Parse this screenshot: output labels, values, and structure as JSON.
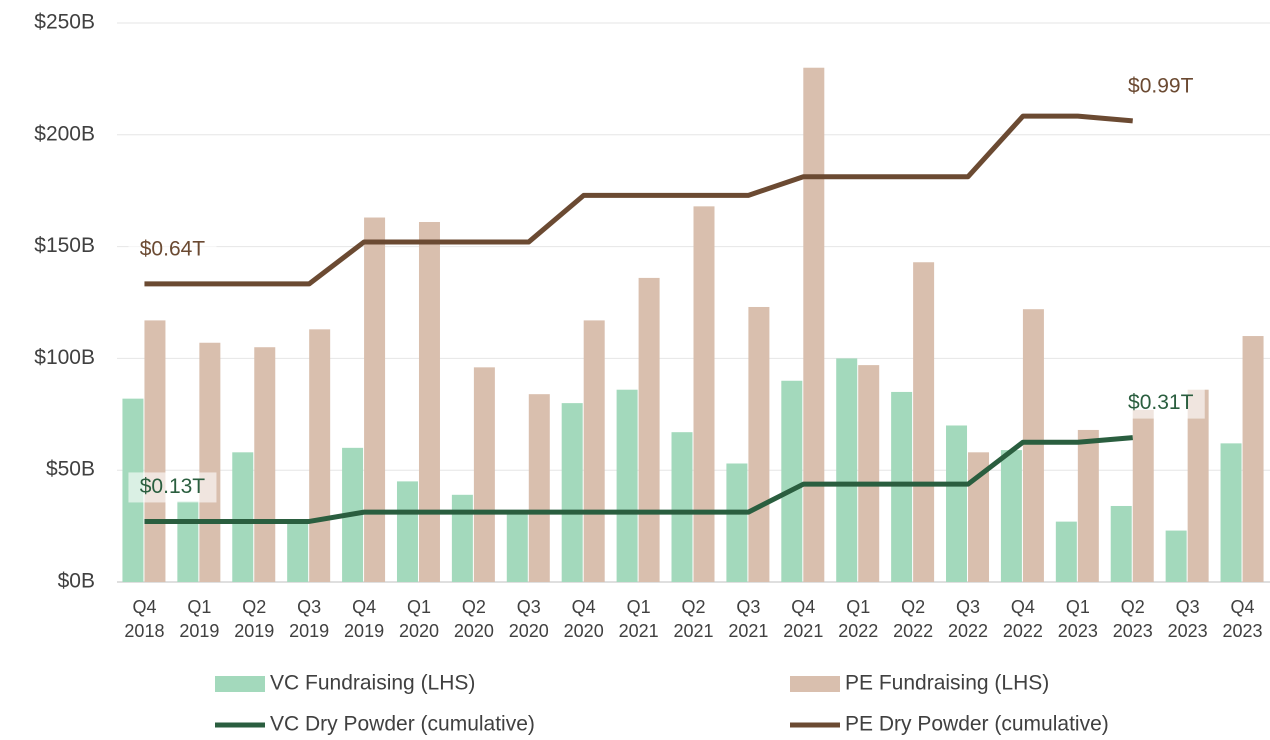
{
  "chart_data": {
    "type": "bar",
    "categories": [
      "Q4 2018",
      "Q1 2019",
      "Q2 2019",
      "Q3 2019",
      "Q4 2019",
      "Q1 2020",
      "Q2 2020",
      "Q3 2020",
      "Q4 2020",
      "Q1 2021",
      "Q2 2021",
      "Q3 2021",
      "Q4 2021",
      "Q1 2022",
      "Q2 2022",
      "Q3 2022",
      "Q4 2022",
      "Q1 2023",
      "Q2 2023",
      "Q3 2023",
      "Q4 2023"
    ],
    "ylim": [
      0,
      250
    ],
    "yticks": [
      {
        "value": 0,
        "label": "$0B"
      },
      {
        "value": 50,
        "label": "$50B"
      },
      {
        "value": 100,
        "label": "$100B"
      },
      {
        "value": 150,
        "label": "$150B"
      },
      {
        "value": 200,
        "label": "$200B"
      },
      {
        "value": 250,
        "label": "$250B"
      }
    ],
    "y2lim": [
      0,
      1.2
    ],
    "grid": true,
    "legend": "bottom",
    "series": [
      {
        "name": "VC Fundraising (LHS)",
        "type": "bar",
        "color": "#a3d9bc",
        "values": [
          82,
          36,
          58,
          28,
          60,
          45,
          39,
          31,
          80,
          86,
          67,
          53,
          90,
          100,
          85,
          70,
          59,
          27,
          34,
          23,
          62
        ]
      },
      {
        "name": "PE Fundraising (LHS)",
        "type": "bar",
        "color": "#d9bfae",
        "values": [
          117,
          107,
          105,
          113,
          163,
          161,
          96,
          84,
          117,
          136,
          168,
          123,
          230,
          97,
          143,
          58,
          122,
          68,
          77,
          86,
          110
        ]
      },
      {
        "name": "VC Dry Powder (cumulative)",
        "type": "line",
        "axis": "y2",
        "color": "#2a5e3f",
        "values": [
          0.13,
          0.13,
          0.13,
          0.13,
          0.15,
          0.15,
          0.15,
          0.15,
          0.15,
          0.15,
          0.15,
          0.15,
          0.21,
          0.21,
          0.21,
          0.21,
          0.3,
          0.3,
          0.31,
          null,
          null
        ],
        "value_labels": [
          "$0.13T",
          null,
          null,
          null,
          null,
          null,
          null,
          null,
          null,
          null,
          null,
          null,
          null,
          null,
          null,
          null,
          null,
          null,
          "$0.31T",
          null,
          null
        ]
      },
      {
        "name": "PE Dry Powder (cumulative)",
        "type": "line",
        "axis": "y2",
        "color": "#6b4a32",
        "values": [
          0.64,
          0.64,
          0.64,
          0.64,
          0.73,
          0.73,
          0.73,
          0.73,
          0.83,
          0.83,
          0.83,
          0.83,
          0.87,
          0.87,
          0.87,
          0.87,
          1.0,
          1.0,
          0.99,
          null,
          null
        ],
        "value_labels": [
          "$0.64T",
          null,
          null,
          null,
          null,
          null,
          null,
          null,
          null,
          null,
          null,
          null,
          null,
          null,
          null,
          null,
          null,
          null,
          "$0.99T",
          null,
          null
        ]
      }
    ]
  }
}
